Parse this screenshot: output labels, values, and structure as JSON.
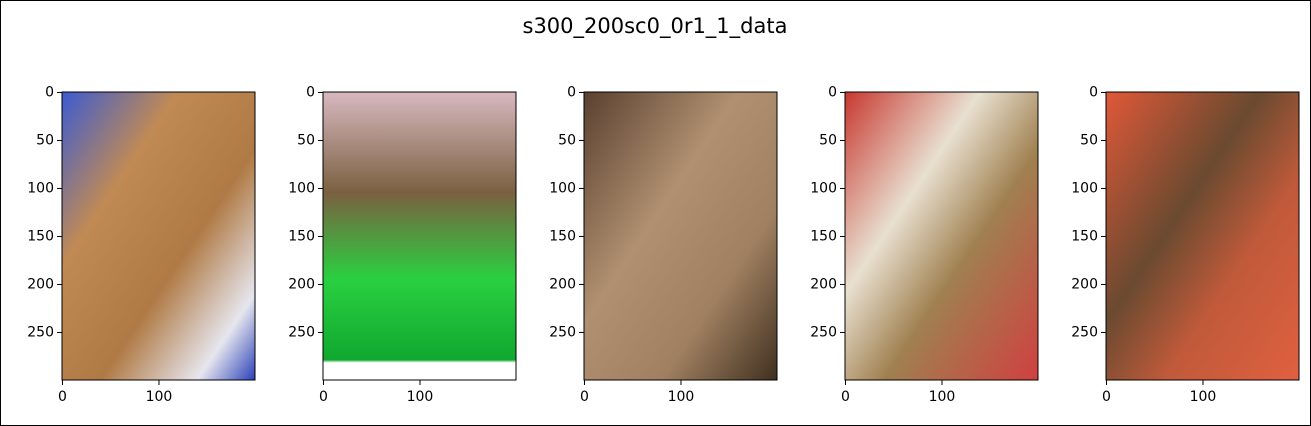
{
  "chart_data": {
    "type": "image",
    "title": "s300_200sc0_0r1_1_data",
    "panels": [
      {
        "xlim": [
          -0.5,
          199.5
        ],
        "ylim": [
          299.5,
          -0.5
        ],
        "xticks": [
          0,
          100
        ],
        "yticks": [
          0,
          50,
          100,
          150,
          200,
          250
        ]
      },
      {
        "xlim": [
          -0.5,
          199.5
        ],
        "ylim": [
          299.5,
          -0.5
        ],
        "xticks": [
          0,
          100
        ],
        "yticks": [
          0,
          50,
          100,
          150,
          200,
          250
        ]
      },
      {
        "xlim": [
          -0.5,
          199.5
        ],
        "ylim": [
          299.5,
          -0.5
        ],
        "xticks": [
          0,
          100
        ],
        "yticks": [
          0,
          50,
          100,
          150,
          200,
          250
        ]
      },
      {
        "xlim": [
          -0.5,
          199.5
        ],
        "ylim": [
          299.5,
          -0.5
        ],
        "xticks": [
          0,
          100
        ],
        "yticks": [
          0,
          50,
          100,
          150,
          200,
          250
        ]
      },
      {
        "xlim": [
          -0.5,
          199.5
        ],
        "ylim": [
          299.5,
          -0.5
        ],
        "xticks": [
          0,
          100
        ],
        "yticks": [
          0,
          50,
          100,
          150,
          200,
          250
        ]
      }
    ]
  }
}
